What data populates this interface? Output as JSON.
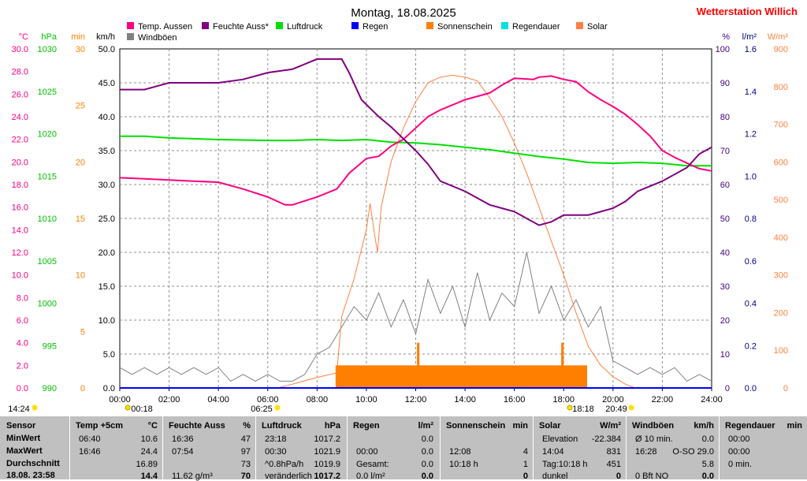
{
  "title": "Montag, 18.08.2025",
  "station": "Wetterstation Willich",
  "legend": [
    {
      "label": "Temp. Aussen",
      "color": "#ff0080"
    },
    {
      "label": "Feuchte Auss*",
      "color": "#800080"
    },
    {
      "label": "Luftdruck",
      "color": "#00e000"
    },
    {
      "label": "Regen",
      "color": "#0000ff"
    },
    {
      "label": "Sonnenschein",
      "color": "#ff8000"
    },
    {
      "label": "Regendauer",
      "color": "#00e0e0"
    },
    {
      "label": "Solar",
      "color": "#ff8040"
    },
    {
      "label": "Windböen",
      "color": "#808080"
    }
  ],
  "axes": {
    "temp": {
      "unit": "°C",
      "color": "#ff0080",
      "ticks": [
        "30.0",
        "28.0",
        "26.0",
        "24.0",
        "22.0",
        "20.0",
        "18.0",
        "16.0",
        "14.0",
        "12.0",
        "10.0",
        "8.0",
        "6.0",
        "4.0",
        "2.0",
        "0.0"
      ]
    },
    "pressure": {
      "unit": "hPa",
      "color": "#00c000",
      "ticks": [
        "1030",
        "1025",
        "1020",
        "1015",
        "1010",
        "1005",
        "1000",
        "995",
        "990"
      ]
    },
    "min": {
      "unit": "min",
      "color": "#ff8000",
      "ticks": [
        "30",
        "25",
        "20",
        "15",
        "10",
        "5",
        "0"
      ]
    },
    "wind": {
      "unit": "km/h",
      "color": "#000000",
      "ticks": [
        "50.0",
        "45.0",
        "40.0",
        "35.0",
        "30.0",
        "25.0",
        "20.0",
        "15.0",
        "10.0",
        "5.0",
        "0.0"
      ]
    },
    "humidity": {
      "unit": "%",
      "color": "#400080",
      "ticks": [
        "100",
        "90",
        "80",
        "70",
        "60",
        "50",
        "40",
        "30",
        "20",
        "10",
        "0"
      ]
    },
    "rain": {
      "unit": "l/m²",
      "color": "#000080",
      "ticks": [
        "1.6",
        "1.4",
        "1.2",
        "1.0",
        "0.8",
        "0.6",
        "0.4",
        "0.2",
        "0.0"
      ]
    },
    "solar": {
      "unit": "W/m²",
      "color": "#ff8040",
      "ticks": [
        "900",
        "800",
        "700",
        "600",
        "500",
        "400",
        "300",
        "200",
        "100",
        "0"
      ]
    },
    "x_ticks": [
      "00:00",
      "02:00",
      "04:00",
      "06:00",
      "08:00",
      "10:00",
      "12:00",
      "14:00",
      "16:00",
      "18:00",
      "20:00",
      "22:00",
      "24:00"
    ]
  },
  "sun_markers": {
    "sunrise_time": "06:25",
    "sunset_time": "20:49",
    "moon_up": "14:24",
    "moon_left": "00:18",
    "moon_right": "18:18"
  },
  "chart_data": {
    "type": "line",
    "x_unit": "hours",
    "xlim": [
      0,
      24
    ],
    "series": [
      {
        "name": "Temp. Aussen",
        "axis": "temp",
        "ylim": [
          0,
          30
        ],
        "points": [
          [
            0,
            18.6
          ],
          [
            1,
            18.5
          ],
          [
            2,
            18.4
          ],
          [
            3,
            18.3
          ],
          [
            4,
            18.2
          ],
          [
            5,
            17.6
          ],
          [
            6,
            16.9
          ],
          [
            6.7,
            16.2
          ],
          [
            7,
            16.2
          ],
          [
            8,
            16.9
          ],
          [
            8.8,
            17.6
          ],
          [
            9.3,
            19
          ],
          [
            10,
            20.3
          ],
          [
            10.5,
            20.5
          ],
          [
            11,
            21.4
          ],
          [
            11.5,
            22
          ],
          [
            12,
            23
          ],
          [
            12.5,
            24
          ],
          [
            13,
            24.6
          ],
          [
            14,
            25.5
          ],
          [
            15,
            26.1
          ],
          [
            15.5,
            26.8
          ],
          [
            16,
            27.4
          ],
          [
            16.77,
            27.3
          ],
          [
            17,
            27.5
          ],
          [
            17.5,
            27.6
          ],
          [
            18,
            27.3
          ],
          [
            18.5,
            27.1
          ],
          [
            19,
            26.2
          ],
          [
            19.5,
            25.5
          ],
          [
            20,
            24.9
          ],
          [
            20.5,
            24.2
          ],
          [
            21,
            23.3
          ],
          [
            21.5,
            22.3
          ],
          [
            22,
            21
          ],
          [
            22.5,
            20.4
          ],
          [
            23,
            19.9
          ],
          [
            23.5,
            19.4
          ],
          [
            24,
            19.2
          ]
        ]
      },
      {
        "name": "Feuchte Auss*",
        "axis": "humidity",
        "ylim": [
          0,
          100
        ],
        "points": [
          [
            0,
            88
          ],
          [
            1,
            88
          ],
          [
            1.5,
            89
          ],
          [
            2,
            90
          ],
          [
            3,
            90
          ],
          [
            4,
            90
          ],
          [
            5,
            91
          ],
          [
            6,
            93
          ],
          [
            7,
            94
          ],
          [
            8,
            97
          ],
          [
            9,
            97
          ],
          [
            9.3,
            93
          ],
          [
            9.8,
            85
          ],
          [
            10.5,
            80
          ],
          [
            11,
            77
          ],
          [
            12,
            70
          ],
          [
            12.5,
            66
          ],
          [
            13,
            61
          ],
          [
            14,
            58
          ],
          [
            15,
            54
          ],
          [
            15.5,
            53
          ],
          [
            16,
            52
          ],
          [
            16.5,
            50
          ],
          [
            17,
            48
          ],
          [
            17.5,
            49
          ],
          [
            18,
            51
          ],
          [
            19,
            51
          ],
          [
            20,
            53
          ],
          [
            20.5,
            55
          ],
          [
            21,
            58
          ],
          [
            22,
            61
          ],
          [
            23,
            65
          ],
          [
            23.5,
            69
          ],
          [
            24,
            71
          ]
        ]
      },
      {
        "name": "Luftdruck",
        "axis": "pressure",
        "ylim": [
          990,
          1030
        ],
        "points": [
          [
            0,
            1019.7
          ],
          [
            1,
            1019.7
          ],
          [
            2,
            1019.5
          ],
          [
            4,
            1019.3
          ],
          [
            6,
            1019.2
          ],
          [
            7,
            1019.2
          ],
          [
            8,
            1019.3
          ],
          [
            9,
            1019.2
          ],
          [
            10,
            1019.3
          ],
          [
            11,
            1019.0
          ],
          [
            12,
            1018.9
          ],
          [
            13,
            1018.7
          ],
          [
            14,
            1018.4
          ],
          [
            15,
            1018.1
          ],
          [
            16,
            1017.7
          ],
          [
            17,
            1017.3
          ],
          [
            18,
            1017.0
          ],
          [
            19,
            1016.6
          ],
          [
            20,
            1016.5
          ],
          [
            21,
            1016.6
          ],
          [
            22,
            1016.5
          ],
          [
            23,
            1016.2
          ],
          [
            24,
            1016.2
          ]
        ]
      },
      {
        "name": "Solar",
        "axis": "solar",
        "ylim": [
          0,
          900
        ],
        "points": [
          [
            0,
            0
          ],
          [
            6.4,
            0
          ],
          [
            7,
            10
          ],
          [
            8,
            28
          ],
          [
            8.8,
            40
          ],
          [
            9,
            190
          ],
          [
            9.5,
            290
          ],
          [
            10,
            420
          ],
          [
            10.15,
            490
          ],
          [
            10.35,
            400
          ],
          [
            10.45,
            360
          ],
          [
            10.6,
            480
          ],
          [
            11,
            600
          ],
          [
            11.5,
            690
          ],
          [
            12,
            760
          ],
          [
            12.5,
            810
          ],
          [
            13,
            825
          ],
          [
            13.5,
            830
          ],
          [
            14,
            825
          ],
          [
            14.5,
            815
          ],
          [
            15,
            770
          ],
          [
            15.5,
            720
          ],
          [
            16,
            650
          ],
          [
            16.5,
            570
          ],
          [
            17,
            480
          ],
          [
            17.5,
            390
          ],
          [
            18,
            300
          ],
          [
            18.5,
            200
          ],
          [
            19,
            110
          ],
          [
            19.5,
            60
          ],
          [
            20,
            30
          ],
          [
            20.5,
            10
          ],
          [
            20.9,
            0
          ],
          [
            24,
            0
          ]
        ]
      },
      {
        "name": "Regen",
        "axis": "rain",
        "ylim": [
          0,
          1.6
        ],
        "points": [
          [
            0,
            0
          ],
          [
            24,
            0
          ]
        ]
      },
      {
        "name": "Sonnenschein",
        "axis": "min",
        "ylim": [
          0,
          30
        ],
        "bars": [
          [
            8.75,
            18.95,
            2
          ],
          [
            12.05,
            12.15,
            4
          ],
          [
            17.9,
            18.0,
            4
          ]
        ]
      },
      {
        "name": "Windböen",
        "axis": "wind",
        "ylim": [
          0,
          50
        ],
        "points": [
          [
            0,
            3
          ],
          [
            0.5,
            2
          ],
          [
            1,
            3
          ],
          [
            1.5,
            2
          ],
          [
            2,
            3
          ],
          [
            2.5,
            2
          ],
          [
            3,
            3
          ],
          [
            3.5,
            2
          ],
          [
            4,
            3
          ],
          [
            4.5,
            1
          ],
          [
            5,
            2
          ],
          [
            5.5,
            1
          ],
          [
            6,
            2
          ],
          [
            6.5,
            1
          ],
          [
            7,
            1
          ],
          [
            7.5,
            2
          ],
          [
            8,
            5
          ],
          [
            8.5,
            6
          ],
          [
            9,
            9
          ],
          [
            9.5,
            12
          ],
          [
            10,
            10
          ],
          [
            10.5,
            14
          ],
          [
            11,
            9
          ],
          [
            11.5,
            13
          ],
          [
            12,
            8
          ],
          [
            12.5,
            16
          ],
          [
            13,
            11
          ],
          [
            13.5,
            15
          ],
          [
            14,
            9
          ],
          [
            14.5,
            17
          ],
          [
            15,
            10
          ],
          [
            15.5,
            14
          ],
          [
            16,
            12
          ],
          [
            16.5,
            20
          ],
          [
            17,
            11
          ],
          [
            17.5,
            15
          ],
          [
            18,
            10
          ],
          [
            18.5,
            13
          ],
          [
            19,
            9
          ],
          [
            19.5,
            12
          ],
          [
            20,
            4
          ],
          [
            20.5,
            3
          ],
          [
            21,
            2
          ],
          [
            21.5,
            3
          ],
          [
            22,
            2
          ],
          [
            22.5,
            3
          ],
          [
            23,
            1
          ],
          [
            23.5,
            2
          ],
          [
            24,
            1
          ]
        ]
      }
    ]
  },
  "table": {
    "sensor": {
      "header": "Sensor",
      "rows": [
        "MinWert",
        "MaxWert",
        "Durchschnitt",
        "18.08. 23:58"
      ]
    },
    "temp": {
      "header": "Temp +5cm",
      "unit": "°C",
      "rows": [
        [
          "06:40",
          "10.6"
        ],
        [
          "16:46",
          "24.4"
        ],
        [
          "",
          "16.89"
        ],
        [
          "",
          "14.4"
        ]
      ]
    },
    "feuchte": {
      "header": "Feuchte Auss",
      "unit": "%",
      "rows": [
        [
          "16:36",
          "47"
        ],
        [
          "07:54",
          "97"
        ],
        [
          "",
          "73"
        ],
        [
          "11.62 g/m³",
          "70"
        ]
      ]
    },
    "luftdruck": {
      "header": "Luftdruck",
      "unit": "hPa",
      "rows": [
        [
          "23:18",
          "1017.2"
        ],
        [
          "00:30",
          "1021.9"
        ],
        [
          "^0.8hPa/h",
          "1019.9"
        ],
        [
          "veränderlich",
          "1017.2"
        ]
      ]
    },
    "regen": {
      "header": "Regen",
      "unit": "l/m²",
      "rows": [
        [
          "",
          ""
        ],
        [
          "00:00",
          "0.0"
        ],
        [
          "Gesamt:",
          "0.0"
        ],
        [
          "0.0 l/m²",
          "0.0"
        ]
      ],
      "first": "0.0"
    },
    "sonne": {
      "header": "Sonnenschein",
      "unit": "min",
      "rows": [
        [
          "",
          ""
        ],
        [
          "12:08",
          "4"
        ],
        [
          "10:18 h",
          "1"
        ],
        [
          "",
          "0"
        ]
      ]
    },
    "solar": {
      "header": "Solar",
      "unit": "W/m²",
      "rows": [
        [
          "Elevation",
          "-22.384"
        ],
        [
          "14:04",
          "831"
        ],
        [
          "Tag:10:18 h",
          "451"
        ],
        [
          "dunkel",
          "0"
        ]
      ]
    },
    "wind": {
      "header": "Windböen",
      "unit": "km/h",
      "rows": [
        [
          "Ø 10 min.",
          "0.0"
        ],
        [
          "16:28",
          "O-SO 29.0"
        ],
        [
          "",
          "5.8"
        ],
        [
          "0 Bft NO",
          "0.0"
        ]
      ]
    },
    "regendauer": {
      "header": "Regendauer",
      "unit": "min",
      "rows": [
        [
          "00:00",
          ""
        ],
        [
          "00:00",
          ""
        ],
        [
          "0 min.",
          ""
        ],
        [
          "",
          ""
        ]
      ]
    }
  }
}
